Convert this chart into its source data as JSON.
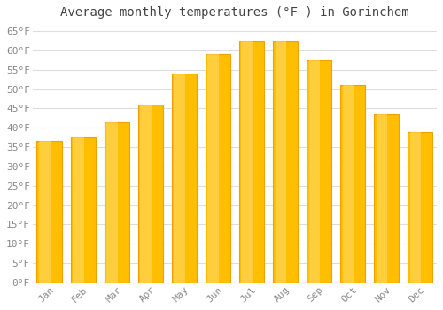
{
  "title": "Average monthly temperatures (°F ) in Gorinchem",
  "months": [
    "Jan",
    "Feb",
    "Mar",
    "Apr",
    "May",
    "Jun",
    "Jul",
    "Aug",
    "Sep",
    "Oct",
    "Nov",
    "Dec"
  ],
  "values": [
    36.5,
    37.5,
    41.5,
    46.0,
    54.0,
    59.0,
    62.5,
    62.5,
    57.5,
    51.0,
    43.5,
    39.0
  ],
  "bar_color_face": "#FFBE00",
  "bar_color_edge": "#F0A000",
  "bar_highlight": "#FFD966",
  "background_color": "#FFFFFF",
  "plot_bg_color": "#FFFFFF",
  "grid_color": "#DDDDDD",
  "tick_label_color": "#888888",
  "title_color": "#444444",
  "ylim": [
    0,
    67
  ],
  "yticks": [
    0,
    5,
    10,
    15,
    20,
    25,
    30,
    35,
    40,
    45,
    50,
    55,
    60,
    65
  ],
  "ytick_labels": [
    "0°F",
    "5°F",
    "10°F",
    "15°F",
    "20°F",
    "25°F",
    "30°F",
    "35°F",
    "40°F",
    "45°F",
    "50°F",
    "55°F",
    "60°F",
    "65°F"
  ],
  "title_fontsize": 10,
  "tick_fontsize": 8,
  "font_family": "monospace",
  "bar_width": 0.75,
  "figsize": [
    5.0,
    3.5
  ],
  "dpi": 100
}
